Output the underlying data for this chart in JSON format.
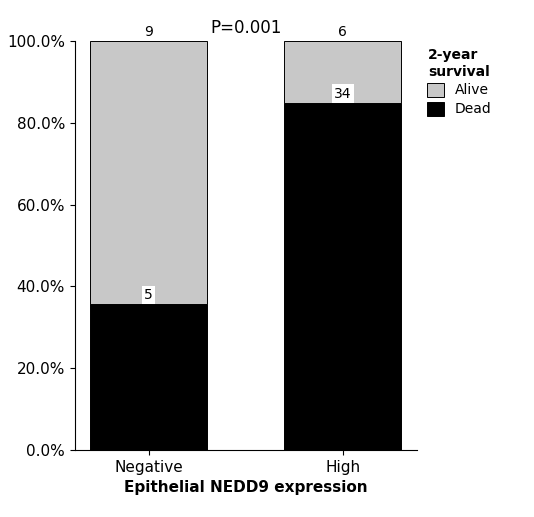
{
  "categories": [
    "Negative",
    "High"
  ],
  "dead_pct": [
    35.714285714285715,
    85.0
  ],
  "alive_pct": [
    64.28571428571429,
    15.0
  ],
  "dead_counts": [
    5,
    34
  ],
  "alive_counts": [
    9,
    6
  ],
  "dead_color": "#000000",
  "alive_color": "#c8c8c8",
  "bar_width": 0.6,
  "xlabel": "Epithelial NEDD9 expression",
  "ylabel": "",
  "title": "P=0.001",
  "legend_title": "2-year\nsurvival",
  "legend_labels": [
    "Alive",
    "Dead"
  ],
  "ylim": [
    0,
    100
  ],
  "yticks": [
    0,
    20,
    40,
    60,
    80,
    100
  ],
  "ytick_labels": [
    "0.0%",
    "20.0%",
    "40.0%",
    "60.0%",
    "80.0%",
    "100.0%"
  ],
  "background_color": "#ffffff",
  "fontsize_ticks": 11,
  "fontsize_xlabel": 11,
  "fontsize_title": 12,
  "fontsize_legend": 10,
  "fontsize_counts": 10
}
